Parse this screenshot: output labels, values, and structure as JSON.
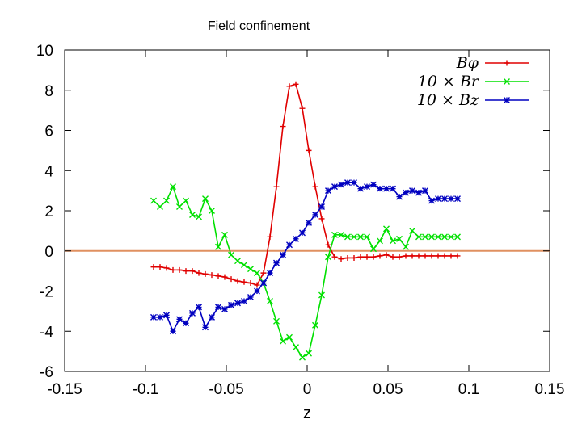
{
  "chart_data": {
    "type": "line",
    "title": "Field confinement",
    "xlabel": "z",
    "ylabel": "",
    "xlim": [
      -0.15,
      0.15
    ],
    "ylim": [
      -6,
      10
    ],
    "grid": false,
    "legend_position": "top-right",
    "x_ticks": [
      "-0.15",
      "-0.1",
      "-0.05",
      "0",
      "0.05",
      "0.1",
      "0.15"
    ],
    "y_ticks": [
      "-6",
      "-4",
      "-2",
      "0",
      "2",
      "4",
      "6",
      "8",
      "10"
    ],
    "reference_line": {
      "y": 0,
      "color": "#e09060"
    },
    "x": [
      -0.095,
      -0.091,
      -0.087,
      -0.083,
      -0.079,
      -0.075,
      -0.071,
      -0.067,
      -0.063,
      -0.059,
      -0.055,
      -0.051,
      -0.047,
      -0.043,
      -0.039,
      -0.035,
      -0.031,
      -0.027,
      -0.023,
      -0.019,
      -0.015,
      -0.011,
      -0.007,
      -0.003,
      0.001,
      0.005,
      0.009,
      0.013,
      0.017,
      0.021,
      0.025,
      0.029,
      0.033,
      0.037,
      0.041,
      0.045,
      0.049,
      0.053,
      0.057,
      0.061,
      0.065,
      0.069,
      0.073,
      0.077,
      0.081,
      0.085,
      0.089,
      0.093
    ],
    "series": [
      {
        "name": "B_φ",
        "legend_label": "Bφ",
        "color": "#e00000",
        "marker": "plus",
        "values": [
          -0.8,
          -0.8,
          -0.85,
          -0.95,
          -0.95,
          -1.0,
          -1.0,
          -1.1,
          -1.15,
          -1.2,
          -1.25,
          -1.3,
          -1.4,
          -1.5,
          -1.55,
          -1.6,
          -1.7,
          -1.1,
          0.7,
          3.2,
          6.2,
          8.2,
          8.3,
          7.1,
          5.0,
          3.2,
          1.6,
          0.3,
          -0.3,
          -0.4,
          -0.35,
          -0.35,
          -0.3,
          -0.3,
          -0.3,
          -0.25,
          -0.2,
          -0.3,
          -0.3,
          -0.25,
          -0.25,
          -0.25,
          -0.25,
          -0.25,
          -0.25,
          -0.25,
          -0.25,
          -0.25
        ]
      },
      {
        "name": "10 × B_r",
        "legend_label": "10 × Br",
        "color": "#00e000",
        "marker": "x",
        "values": [
          2.5,
          2.2,
          2.5,
          3.2,
          2.2,
          2.5,
          1.8,
          1.7,
          2.6,
          2.0,
          0.2,
          0.8,
          -0.2,
          -0.5,
          -0.7,
          -0.9,
          -1.1,
          -1.6,
          -2.5,
          -3.5,
          -4.5,
          -4.3,
          -4.8,
          -5.3,
          -5.1,
          -3.7,
          -2.2,
          -0.3,
          0.8,
          0.8,
          0.7,
          0.7,
          0.7,
          0.7,
          0.1,
          0.5,
          1.1,
          0.5,
          0.6,
          0.2,
          1.0,
          0.7,
          0.7,
          0.7,
          0.7,
          0.7,
          0.7,
          0.7
        ]
      },
      {
        "name": "10 × B_z",
        "legend_label": "10 × Bz",
        "color": "#0000c0",
        "marker": "star",
        "values": [
          -3.3,
          -3.3,
          -3.2,
          -4.0,
          -3.4,
          -3.6,
          -3.1,
          -2.8,
          -3.8,
          -3.3,
          -2.8,
          -2.9,
          -2.7,
          -2.6,
          -2.5,
          -2.3,
          -2.0,
          -1.6,
          -1.1,
          -0.6,
          -0.2,
          0.3,
          0.6,
          0.9,
          1.4,
          1.8,
          2.2,
          3.0,
          3.2,
          3.3,
          3.4,
          3.4,
          3.1,
          3.2,
          3.3,
          3.1,
          3.1,
          3.1,
          2.7,
          2.9,
          3.0,
          2.9,
          3.0,
          2.5,
          2.6,
          2.6,
          2.6,
          2.6
        ]
      }
    ]
  }
}
